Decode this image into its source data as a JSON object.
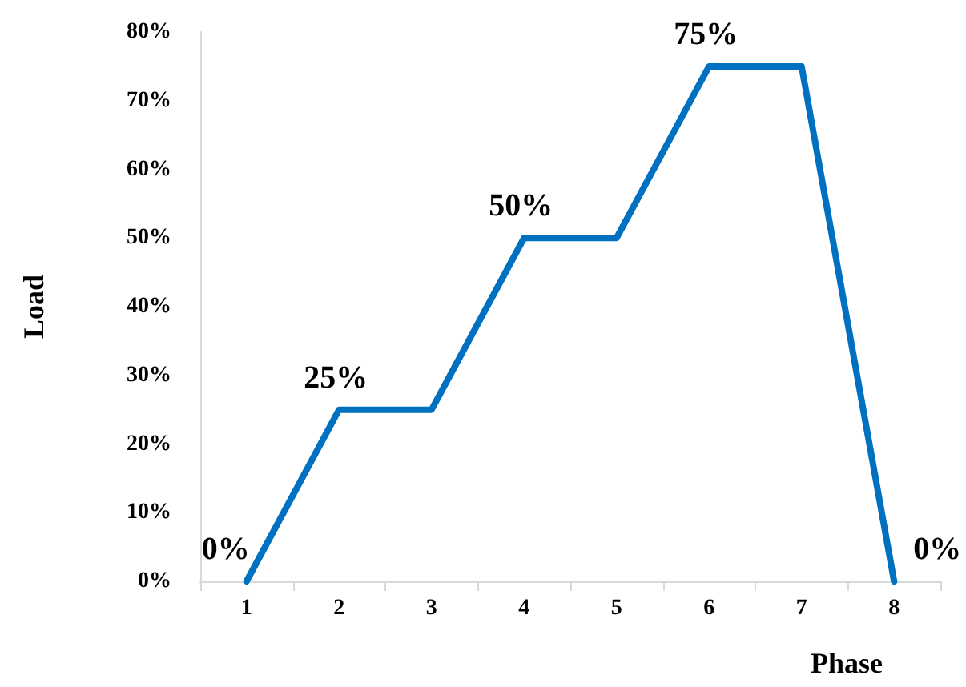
{
  "chart_data": {
    "type": "line",
    "xlabel": "Phase",
    "ylabel": "Load",
    "categories": [
      "1",
      "2",
      "3",
      "4",
      "5",
      "6",
      "7",
      "8"
    ],
    "series": [
      {
        "color": "#0070c0",
        "values": [
          0,
          25,
          25,
          50,
          50,
          75,
          75,
          0
        ],
        "value_labels": [
          "0%",
          "25%",
          null,
          "50%",
          null,
          "75%",
          null,
          "0%"
        ]
      }
    ],
    "ylim": [
      0,
      80
    ],
    "yticks": [
      {
        "value": 0,
        "label": "0%"
      },
      {
        "value": 10,
        "label": "10%"
      },
      {
        "value": 20,
        "label": "20%"
      },
      {
        "value": 30,
        "label": "30%"
      },
      {
        "value": 40,
        "label": "40%"
      },
      {
        "value": 50,
        "label": "50%"
      },
      {
        "value": 60,
        "label": "60%"
      },
      {
        "value": 70,
        "label": "70%"
      },
      {
        "value": 80,
        "label": "80%"
      }
    ],
    "grid": false,
    "line_style": "solid"
  }
}
